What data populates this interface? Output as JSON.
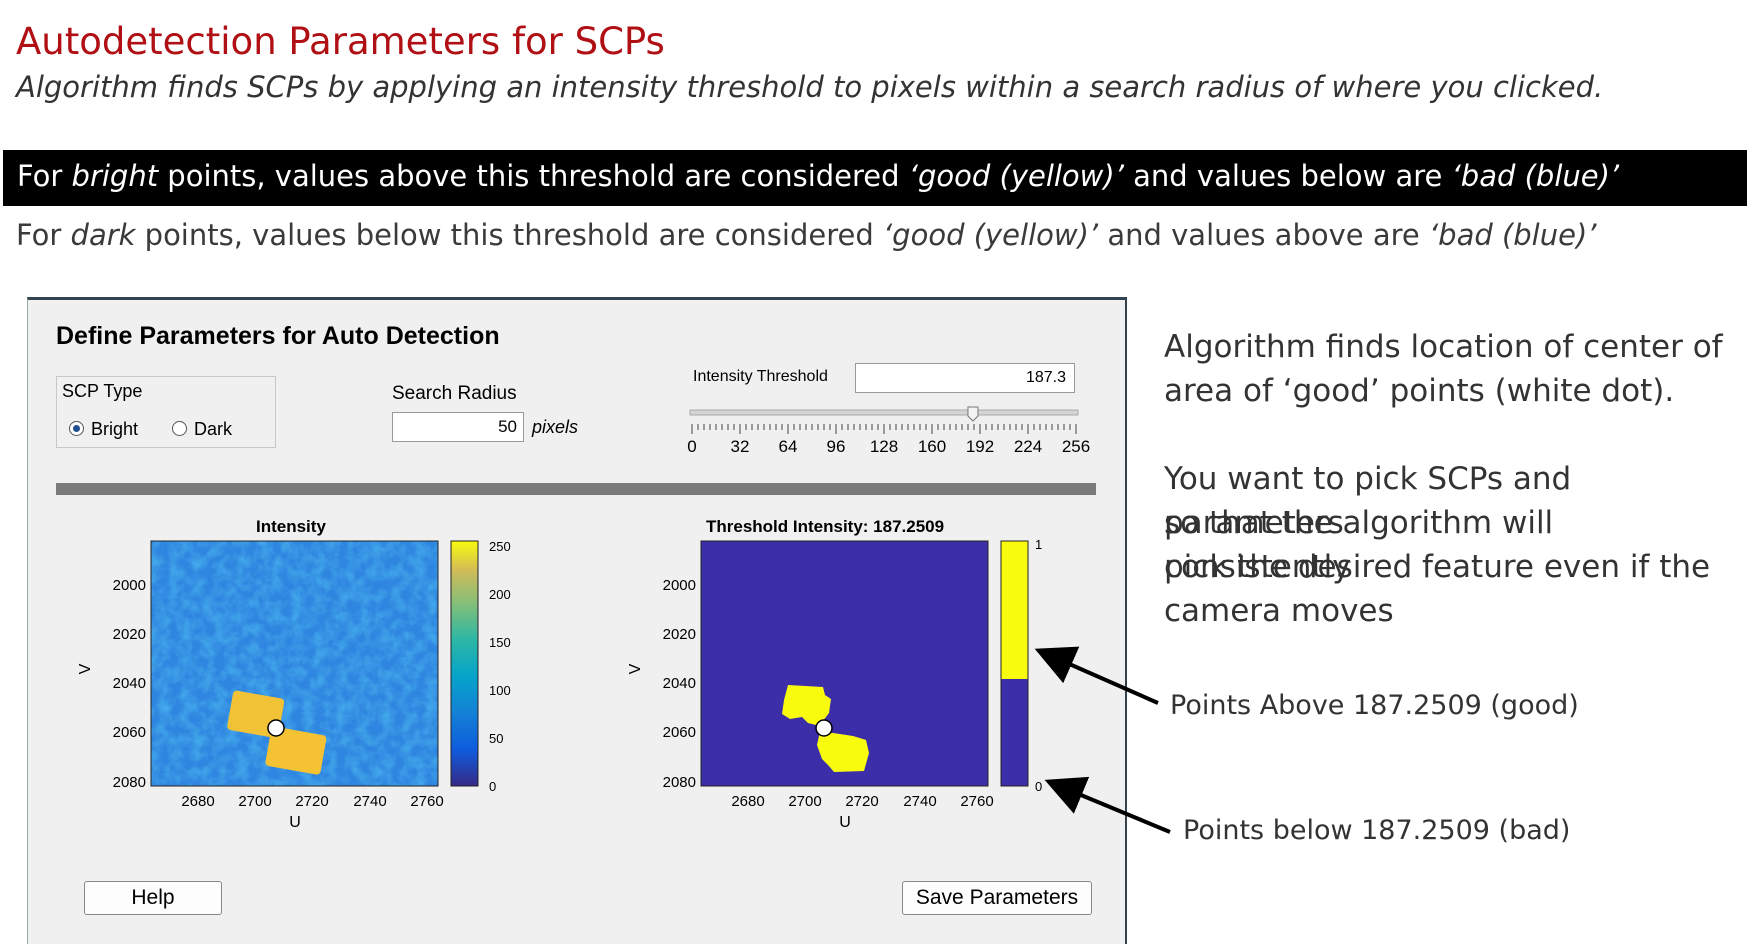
{
  "slide": {
    "title": "Autodetection Parameters for SCPs",
    "subtitle": "Algorithm finds SCPs by applying an intensity threshold to pixels within a search radius of where you clicked.",
    "bright_line": {
      "p1": "For ",
      "p2": "bright",
      "p3": " points, values above this threshold are considered ",
      "p4": "‘good (yellow)’",
      "p5": " and values below are ",
      "p6": "‘bad (blue)’"
    },
    "dark_line": {
      "p1": "For ",
      "p2": "dark",
      "p3": " points, values below this threshold are considered ",
      "p4": "‘good (yellow)’",
      "p5": " and values above are ",
      "p6": "‘bad (blue)’"
    }
  },
  "dialog": {
    "title": "Define Parameters for Auto Detection",
    "scp_type": {
      "label": "SCP Type",
      "options": [
        "Bright",
        "Dark"
      ],
      "selected": "Bright"
    },
    "search_radius": {
      "label": "Search Radius",
      "value": "50",
      "units": "pixels"
    },
    "intensity_threshold": {
      "label": "Intensity Threshold",
      "value": "187.3",
      "slider_min": 0,
      "slider_max": 256,
      "slider_value": 187.3,
      "tick_labels": [
        "0",
        "32",
        "64",
        "96",
        "128",
        "160",
        "192",
        "224",
        "256"
      ]
    },
    "intensity_plot": {
      "title": "Intensity",
      "xlabel": "U",
      "ylabel": "V",
      "x_ticks": [
        "2680",
        "2700",
        "2720",
        "2740",
        "2760"
      ],
      "y_ticks": [
        "2000",
        "2020",
        "2040",
        "2060",
        "2080"
      ],
      "colorbar_ticks": [
        "250",
        "200",
        "150",
        "100",
        "50",
        "0"
      ]
    },
    "threshold_plot": {
      "title": "Threshold Intensity: 187.2509",
      "xlabel": "U",
      "ylabel": "V",
      "x_ticks": [
        "2680",
        "2700",
        "2720",
        "2740",
        "2760"
      ],
      "y_ticks": [
        "2000",
        "2020",
        "2040",
        "2060",
        "2080"
      ],
      "colorbar_ticks": [
        "1",
        "0"
      ]
    },
    "help_button": "Help",
    "save_button": "Save Parameters"
  },
  "notes": {
    "line1": "Algorithm finds location of center of",
    "line2": "area of ‘good’ points (white dot).",
    "line3": "You want to pick SCPs and parameters",
    "line4": "so that the algorithm will consistently",
    "line5": "pick the desired feature even if the",
    "line6": "camera moves",
    "arrow_above": "Points Above 187.2509 (good)",
    "arrow_below": "Points below 187.2509 (bad)"
  },
  "colors": {
    "title_red": "#b00f14",
    "parula_blue": "#3c2ea8",
    "parula_yellow": "#f9fb0e"
  }
}
